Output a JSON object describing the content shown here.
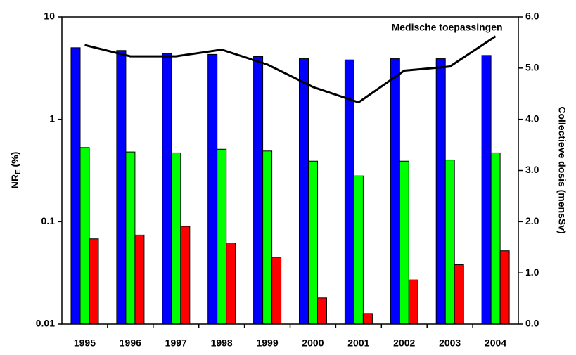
{
  "chart_data": {
    "type": "bar",
    "ylabel": {
      "main": "NR",
      "sub": "E",
      "rest": " (%)"
    },
    "y2label": "Collectieve dosis (mensSv)",
    "categories": [
      "1995",
      "1996",
      "1997",
      "1998",
      "1999",
      "2000",
      "2001",
      "2002",
      "2003",
      "2004"
    ],
    "log_y": true,
    "ylim": [
      0.01,
      10
    ],
    "yticks": [
      0.01,
      0.1,
      1,
      10
    ],
    "y2lim": [
      0,
      6
    ],
    "y2ticks": [
      {
        "value": 0,
        "label": "0.0"
      },
      {
        "value": 1,
        "label": "1.0"
      },
      {
        "value": 2,
        "label": "2.0"
      },
      {
        "value": 3,
        "label": "3.0"
      },
      {
        "value": 4,
        "label": "4.0"
      },
      {
        "value": 5,
        "label": "5.0"
      },
      {
        "value": 6,
        "label": "6.0"
      }
    ],
    "series": [
      {
        "color": "#0000ff",
        "values": [
          5.0,
          4.7,
          4.4,
          4.3,
          4.1,
          3.9,
          3.8,
          3.9,
          3.9,
          4.2
        ]
      },
      {
        "color": "#00ff00",
        "values": [
          0.53,
          0.48,
          0.47,
          0.51,
          0.49,
          0.39,
          0.28,
          0.39,
          0.4,
          0.47
        ]
      },
      {
        "color": "#ff0000",
        "values": [
          0.068,
          0.074,
          0.09,
          0.062,
          0.045,
          0.018,
          0.0127,
          0.027,
          0.038,
          0.052
        ]
      },
      {
        "name": "Medische toepassingen",
        "type": "line",
        "axis": "y2",
        "color": "#000000",
        "values": [
          5.45,
          5.23,
          5.23,
          5.36,
          5.07,
          4.63,
          4.33,
          4.95,
          5.03,
          5.62
        ]
      }
    ]
  }
}
